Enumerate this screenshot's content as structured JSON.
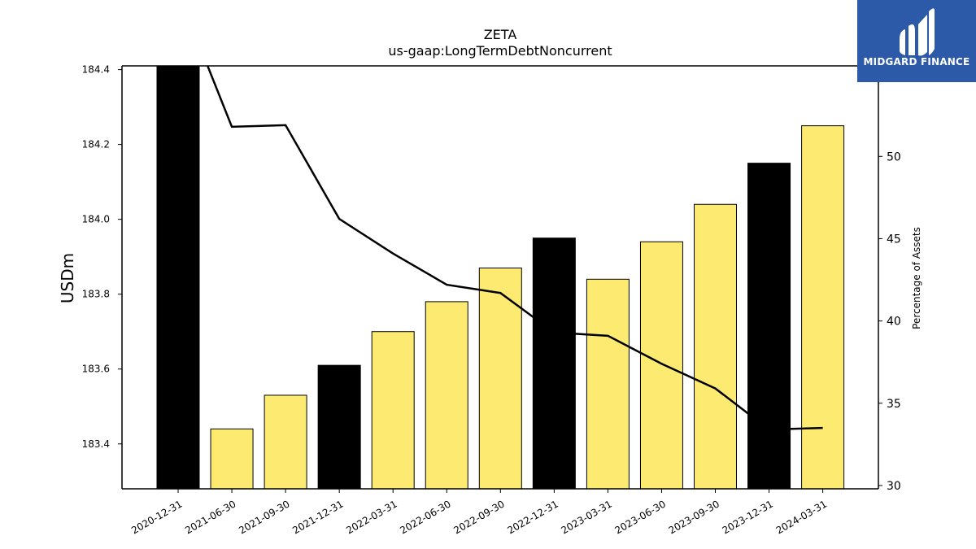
{
  "chart_data": {
    "type": "bar",
    "title": "ZETA",
    "subtitle": "us-gaap:LongTermDebtNoncurrent",
    "ylabel": "USDm",
    "y2label": "Percentage of Assets",
    "categories": [
      "2020-12-31",
      "2021-06-30",
      "2021-09-30",
      "2021-12-31",
      "2022-03-31",
      "2022-06-30",
      "2022-09-30",
      "2022-12-31",
      "2023-03-31",
      "2023-06-30",
      "2023-09-30",
      "2023-12-31",
      "2024-03-31"
    ],
    "series": [
      {
        "values": [
          184.41,
          183.44,
          183.53,
          183.61,
          183.7,
          183.78,
          183.87,
          183.95,
          183.84,
          183.94,
          184.04,
          184.15,
          184.25
        ],
        "axis": "left",
        "kind": "bar",
        "colors": [
          "#000000",
          "#fdeb71",
          "#fdeb71",
          "#000000",
          "#fdeb71",
          "#fdeb71",
          "#fdeb71",
          "#000000",
          "#fdeb71",
          "#fdeb71",
          "#fdeb71",
          "#000000",
          "#fdeb71"
        ]
      },
      {
        "values": [
          60.0,
          51.8,
          51.9,
          46.2,
          44.1,
          42.2,
          41.7,
          39.3,
          39.1,
          37.4,
          35.9,
          33.4,
          33.5
        ],
        "axis": "right",
        "kind": "line",
        "color": "#000000"
      }
    ],
    "ylim": [
      183.28,
      184.41
    ],
    "y2lim": [
      29.8,
      55.5
    ],
    "yticks": [
      183.4,
      183.6,
      183.8,
      184.0,
      184.2,
      184.4
    ],
    "ytick_labels": [
      "183.4",
      "183.6",
      "183.8",
      "184.0",
      "184.2",
      "184.4"
    ],
    "y2ticks": [
      30,
      35,
      40,
      45,
      50
    ],
    "y2tick_labels": [
      "30",
      "35",
      "40",
      "45",
      "50"
    ],
    "grid": false,
    "legend": "none"
  },
  "logo": {
    "text": "MIDGARD FINANCE",
    "background": "#2d5aa8",
    "icon": "midgard-logo-icon"
  }
}
